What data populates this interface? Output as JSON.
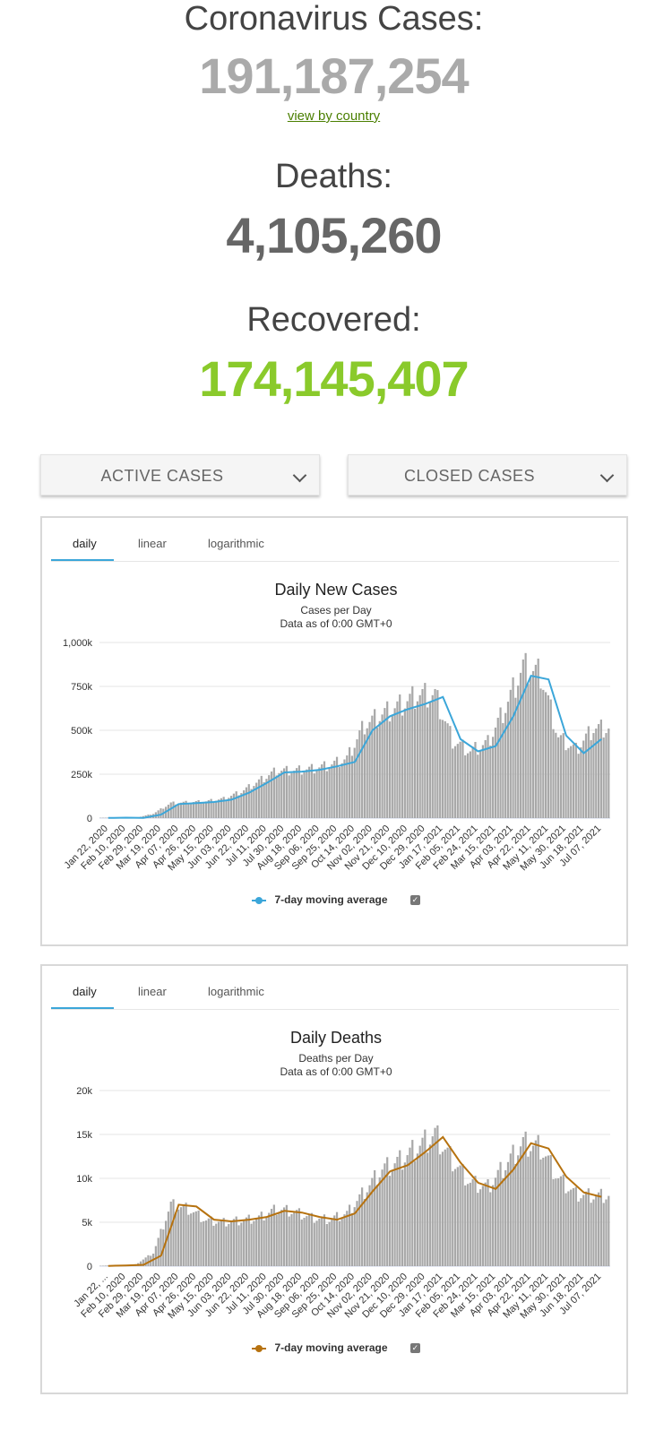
{
  "stats": {
    "cases_title": "Coronavirus Cases:",
    "cases_value": "191,187,254",
    "view_by_country": "view by country",
    "deaths_title": "Deaths:",
    "deaths_value": "4,105,260",
    "recovered_title": "Recovered:",
    "recovered_value": "174,145,407"
  },
  "dropdowns": {
    "active": "ACTIVE CASES",
    "closed": "CLOSED CASES"
  },
  "charts": [
    {
      "tabs": [
        "daily",
        "linear",
        "logarithmic"
      ],
      "active_tab": "daily",
      "title": "Daily New Cases",
      "subtitle": "Cases per Day",
      "subtitle2": "Data as of 0:00 GMT+0",
      "legend": "7-day moving average",
      "line_color": "#3ba6d9"
    },
    {
      "tabs": [
        "daily",
        "linear",
        "logarithmic"
      ],
      "active_tab": "daily",
      "title": "Daily Deaths",
      "subtitle": "Deaths per Day",
      "subtitle2": "Data as of 0:00 GMT+0",
      "legend": "7-day moving average",
      "line_color": "#b6720f"
    }
  ],
  "chart_data": [
    {
      "type": "bar",
      "title": "Daily New Cases",
      "subtitle": "Cases per Day",
      "ylim": [
        0,
        1000000
      ],
      "yticks": [
        "0",
        "250k",
        "500k",
        "750k",
        "1,000k"
      ],
      "categories": [
        "Jan 22, 2020",
        "Feb 10, 2020",
        "Feb 29, 2020",
        "Mar 19, 2020",
        "Apr 07, 2020",
        "Apr 26, 2020",
        "May 15, 2020",
        "Jun 03, 2020",
        "Jun 22, 2020",
        "Jul 11, 2020",
        "Jul 30, 2020",
        "Aug 18, 2020",
        "Sep 06, 2020",
        "Sep 25, 2020",
        "Oct 14, 2020",
        "Nov 02, 2020",
        "Nov 21, 2020",
        "Dec 10, 2020",
        "Dec 29, 2020",
        "Jan 17, 2021",
        "Feb 05, 2021",
        "Feb 24, 2021",
        "Mar 15, 2021",
        "Apr 03, 2021",
        "Apr 22, 2021",
        "May 11, 2021",
        "May 30, 2021",
        "Jun 18, 2021",
        "Jul 07, 2021"
      ],
      "series": [
        {
          "name": "Cases per Day",
          "values": [
            2000,
            3000,
            1500,
            25000,
            85000,
            90000,
            95000,
            110000,
            150000,
            210000,
            270000,
            270000,
            280000,
            300000,
            340000,
            530000,
            590000,
            640000,
            700000,
            700000,
            440000,
            380000,
            430000,
            630000,
            860000,
            820000,
            460000,
            390000,
            510000
          ]
        },
        {
          "name": "7-day moving average",
          "values": [
            1000,
            2500,
            1200,
            20000,
            80000,
            85000,
            92000,
            105000,
            145000,
            200000,
            260000,
            265000,
            275000,
            295000,
            320000,
            500000,
            580000,
            620000,
            650000,
            690000,
            450000,
            380000,
            410000,
            580000,
            810000,
            790000,
            470000,
            370000,
            450000
          ]
        }
      ],
      "grid": true,
      "legend_position": "bottom"
    },
    {
      "type": "bar",
      "title": "Daily Deaths",
      "subtitle": "Deaths per Day",
      "ylim": [
        0,
        20000
      ],
      "yticks": [
        "0",
        "5k",
        "10k",
        "15k",
        "20k"
      ],
      "categories": [
        "Jan 22, ...",
        "Feb 10, 2020",
        "Feb 29, 2020",
        "Mar 19, 2020",
        "Apr 07, 2020",
        "Apr 26, 2020",
        "May 15, 2020",
        "Jun 03, 2020",
        "Jun 22, 2020",
        "Jul 11, 2020",
        "Jul 30, 2020",
        "Aug 18, 2020",
        "Sep 06, 2020",
        "Sep 25, 2020",
        "Oct 14, 2020",
        "Nov 02, 2020",
        "Nov 21, 2020",
        "Dec 10, 2020",
        "Dec 29, 2020",
        "Jan 17, 2021",
        "Feb 05, 2021",
        "Feb 24, 2021",
        "Mar 15, 2021",
        "Apr 03, 2021",
        "Apr 22, 2021",
        "May 11, 2021",
        "May 30, 2021",
        "Jun 18, 2021",
        "Jul 07, 2021"
      ],
      "series": [
        {
          "name": "Deaths per Day",
          "values": [
            50,
            100,
            200,
            1500,
            7000,
            6500,
            5200,
            5000,
            5200,
            5500,
            6500,
            6200,
            5500,
            5300,
            6000,
            8500,
            11000,
            12000,
            13500,
            15000,
            12000,
            9500,
            9000,
            11500,
            14000,
            13500,
            10000,
            8200,
            8000
          ]
        },
        {
          "name": "7-day moving average",
          "values": [
            30,
            80,
            150,
            1200,
            7000,
            6800,
            5300,
            5100,
            5300,
            5600,
            6300,
            6100,
            5600,
            5300,
            6000,
            8500,
            10800,
            11500,
            13000,
            14700,
            11800,
            9500,
            8800,
            11000,
            14000,
            13400,
            10200,
            8400,
            7900
          ]
        }
      ],
      "grid": true,
      "legend_position": "bottom"
    }
  ]
}
